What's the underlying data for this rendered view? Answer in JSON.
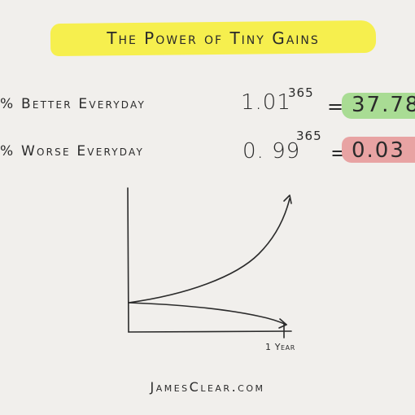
{
  "title": "The Power of Tiny Gains",
  "rows": [
    {
      "label": "% Better Everyday",
      "base": "1.01",
      "exponent": "365",
      "equals": "=",
      "result": "37.78",
      "highlight": "#a9dc94"
    },
    {
      "label": "% Worse Everyday",
      "base": "0. 99",
      "exponent": "365",
      "equals": "=",
      "result": "0.03",
      "highlight": "#e8a3a3"
    }
  ],
  "chart": {
    "x_tick_label": "1 Year",
    "curves": [
      "growth",
      "decline"
    ]
  },
  "footer": "JamesClear.com"
}
